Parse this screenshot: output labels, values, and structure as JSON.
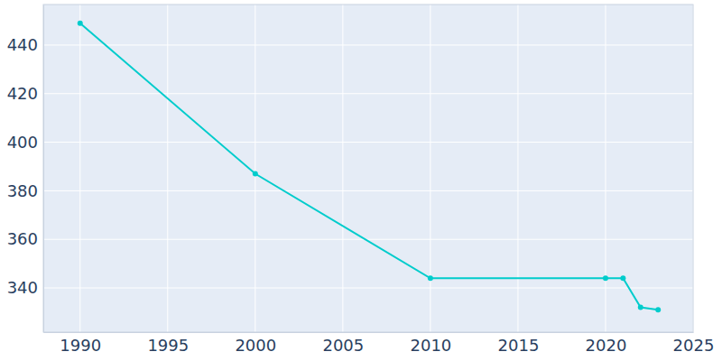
{
  "chart_data": {
    "type": "line",
    "x": [
      1990,
      2000,
      2010,
      2020,
      2021,
      2022,
      2023
    ],
    "values": [
      449,
      387,
      344,
      344,
      344,
      332,
      331
    ],
    "color": "#00cccc",
    "marker": "circle",
    "xlim": [
      1987.9,
      2025
    ],
    "xticks": [
      1990,
      1995,
      2000,
      2005,
      2010,
      2015,
      2020,
      2025
    ],
    "ylim": [
      321.8,
      456.7
    ],
    "yticks": [
      340,
      360,
      380,
      400,
      420,
      440
    ],
    "grid": true
  }
}
